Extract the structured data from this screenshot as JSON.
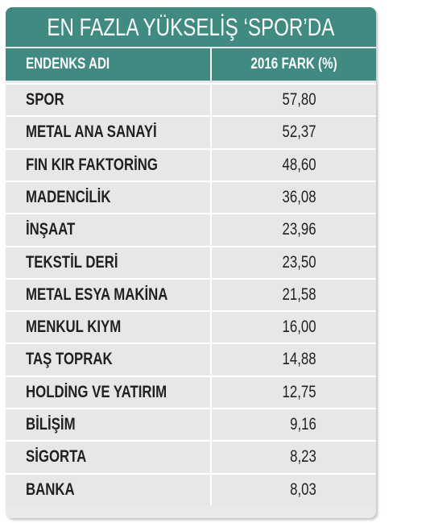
{
  "title": "EN FAZLA YÜKSELİŞ ‘SPOR’DA",
  "table": {
    "header": [
      "ENDENKS ADI",
      "2016 FARK (%)"
    ],
    "rows": [
      [
        "SPOR",
        "57,80"
      ],
      [
        "METAL ANA SANAYİ",
        "52,37"
      ],
      [
        "FIN KIR FAKTORİNG",
        "48,60"
      ],
      [
        "MADENCİLİK",
        "36,08"
      ],
      [
        "İNŞAAT",
        "23,96"
      ],
      [
        "TEKSTİL DERİ",
        "23,50"
      ],
      [
        "METAL ESYA MAKİNA",
        "21,58"
      ],
      [
        "MENKUL KIYM",
        "16,00"
      ],
      [
        "TAŞ TOPRAK",
        "14,88"
      ],
      [
        "HOLDİNG VE YATIRIM",
        "12,75"
      ],
      [
        "BİLİŞİM",
        "9,16"
      ],
      [
        "SİGORTA",
        "8,23"
      ],
      [
        "BANKA",
        "8,03"
      ]
    ]
  }
}
